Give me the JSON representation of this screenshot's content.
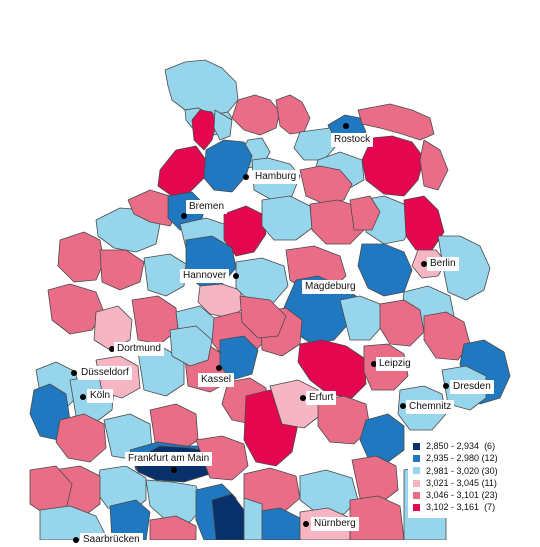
{
  "map": {
    "colors": {
      "c1": "#08306b",
      "c2": "#1f78c0",
      "c3": "#97d5ec",
      "c4": "#f6b5c3",
      "c5": "#ea6d88",
      "c6": "#e4064f",
      "border": "#4a4a4a",
      "background": "#ffffff"
    }
  },
  "cities": [
    {
      "id": "rostock",
      "name": "Rostock"
    },
    {
      "id": "hamburg",
      "name": "Hamburg"
    },
    {
      "id": "bremen",
      "name": "Bremen"
    },
    {
      "id": "berlin",
      "name": "Berlin"
    },
    {
      "id": "hannover",
      "name": "Hannover"
    },
    {
      "id": "magdeburg",
      "name": "Magdeburg"
    },
    {
      "id": "dortmund",
      "name": "Dortmund"
    },
    {
      "id": "leipzig",
      "name": "Leipzig"
    },
    {
      "id": "duesseldorf",
      "name": "Düsseldorf"
    },
    {
      "id": "kassel",
      "name": "Kassel"
    },
    {
      "id": "dresden",
      "name": "Dresden"
    },
    {
      "id": "koeln",
      "name": "Köln"
    },
    {
      "id": "erfurt",
      "name": "Erfurt"
    },
    {
      "id": "chemnitz",
      "name": "Chemnitz"
    },
    {
      "id": "frankfurt",
      "name": "Frankfurt am Main"
    },
    {
      "id": "nuernberg",
      "name": "Nürnberg"
    },
    {
      "id": "saarbruecken",
      "name": "Saarbrücken"
    }
  ],
  "legend": {
    "items": [
      {
        "range": "2,850 - 2,934",
        "count": "(6)",
        "color": "#08306b"
      },
      {
        "range": "2,935 - 2,980",
        "count": "(12)",
        "color": "#1f78c0"
      },
      {
        "range": "2,981 - 3,020",
        "count": "(30)",
        "color": "#97d5ec"
      },
      {
        "range": "3,021 - 3,045",
        "count": "(11)",
        "color": "#f6b5c3"
      },
      {
        "range": "3,046 - 3,101",
        "count": "(23)",
        "color": "#ea6d88"
      },
      {
        "range": "3,102 - 3,161",
        "count": "(7)",
        "color": "#e4064f"
      }
    ]
  }
}
